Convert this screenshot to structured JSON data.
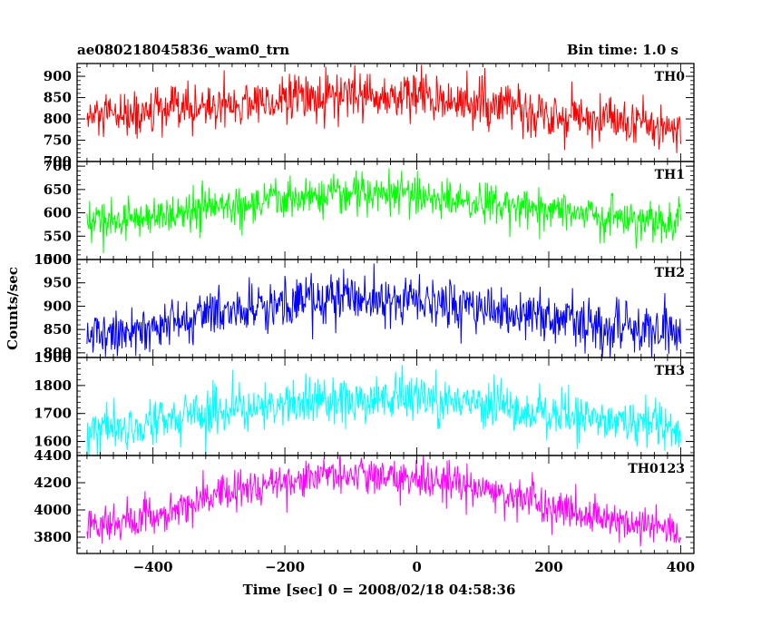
{
  "header": {
    "title": "ae080218045836_wam0_trn",
    "bin_time": "Bin time: 1.0 s"
  },
  "chart_data": {
    "type": "line",
    "title": "ae080218045836_wam0_trn",
    "xlabel": "Time [sec] 0 = 2008/02/18 04:58:36",
    "ylabel": "Counts/sec",
    "xlim": [
      -515,
      420
    ],
    "x_ticks": [
      -400,
      -200,
      0,
      200,
      400
    ],
    "x_tick_labels": [
      "−400",
      "−200",
      "0",
      "200",
      "400"
    ],
    "x_data_range": [
      -500,
      400
    ],
    "bin_seconds": 1.0,
    "grid": false,
    "legend": "none",
    "panels": [
      {
        "name": "TH0",
        "color": "#ff0000",
        "ylim": [
          700,
          930
        ],
        "y_ticks": [
          700,
          750,
          800,
          850,
          900
        ],
        "y_tick_labels": [
          "700",
          "750",
          "800",
          "850",
          "900"
        ],
        "trend": [
          [
            -500,
            800
          ],
          [
            -400,
            812
          ],
          [
            -300,
            832
          ],
          [
            -200,
            845
          ],
          [
            -100,
            853
          ],
          [
            0,
            852
          ],
          [
            100,
            835
          ],
          [
            200,
            812
          ],
          [
            300,
            793
          ],
          [
            400,
            775
          ]
        ],
        "noise_sd": 28
      },
      {
        "name": "TH1",
        "color": "#00ff00",
        "ylim": [
          500,
          710
        ],
        "y_ticks": [
          500,
          550,
          600,
          650,
          700
        ],
        "y_tick_labels": [
          "500",
          "550",
          "600",
          "650",
          "700"
        ],
        "trend": [
          [
            -500,
            578
          ],
          [
            -400,
            592
          ],
          [
            -300,
            612
          ],
          [
            -200,
            628
          ],
          [
            -100,
            640
          ],
          [
            0,
            638
          ],
          [
            100,
            625
          ],
          [
            200,
            608
          ],
          [
            300,
            592
          ],
          [
            400,
            575
          ]
        ],
        "noise_sd": 22
      },
      {
        "name": "TH2",
        "color": "#0000ff",
        "ylim": [
          790,
          1000
        ],
        "y_ticks": [
          800,
          850,
          900,
          950,
          1000
        ],
        "y_tick_labels": [
          "800",
          "850",
          "900",
          "950",
          "1000"
        ],
        "trend": [
          [
            -500,
            835
          ],
          [
            -400,
            852
          ],
          [
            -300,
            882
          ],
          [
            -200,
            905
          ],
          [
            -100,
            918
          ],
          [
            0,
            915
          ],
          [
            100,
            898
          ],
          [
            200,
            875
          ],
          [
            300,
            858
          ],
          [
            400,
            843
          ]
        ],
        "noise_sd": 28
      },
      {
        "name": "TH3",
        "color": "#00ffff",
        "ylim": [
          1550,
          1900
        ],
        "y_ticks": [
          1600,
          1700,
          1800,
          1900
        ],
        "y_tick_labels": [
          "1600",
          "1700",
          "1800",
          "1900"
        ],
        "trend": [
          [
            -500,
            1645
          ],
          [
            -400,
            1672
          ],
          [
            -300,
            1705
          ],
          [
            -200,
            1735
          ],
          [
            -100,
            1752
          ],
          [
            0,
            1750
          ],
          [
            100,
            1730
          ],
          [
            200,
            1700
          ],
          [
            300,
            1672
          ],
          [
            400,
            1645
          ]
        ],
        "noise_sd": 42
      },
      {
        "name": "TH0123",
        "color": "#ff00ff",
        "ylim": [
          3680,
          4400
        ],
        "y_ticks": [
          3800,
          4000,
          4200,
          4400
        ],
        "y_tick_labels": [
          "3800",
          "4000",
          "4200",
          "4400"
        ],
        "trend": [
          [
            -500,
            3860
          ],
          [
            -400,
            3960
          ],
          [
            -300,
            4100
          ],
          [
            -200,
            4210
          ],
          [
            -100,
            4260
          ],
          [
            0,
            4240
          ],
          [
            100,
            4150
          ],
          [
            200,
            4030
          ],
          [
            300,
            3920
          ],
          [
            400,
            3840
          ]
        ],
        "noise_sd": 70
      }
    ]
  }
}
